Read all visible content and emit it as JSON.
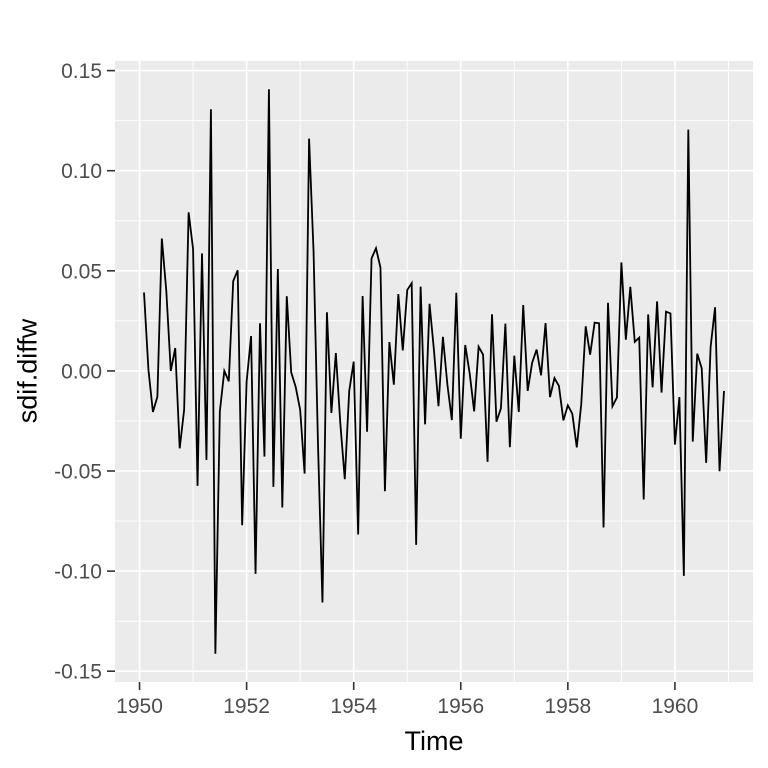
{
  "window": {
    "background": "#FFFFFF"
  },
  "axis_style": {
    "tick_label_color": "#4D4D4D",
    "tick_mark_color": "#333333",
    "title_color": "#000000",
    "tick_label_size": 21,
    "title_size": 27
  },
  "chart_data": {
    "type": "line",
    "title": "",
    "xlabel": "Time",
    "ylabel": "sdif.diffw",
    "legend_position": "none",
    "grid": true,
    "panel_background": "#EBEBEB",
    "grid_major_color": "#FFFFFF",
    "grid_minor_color": "#FFFFFF",
    "line_color": "#000000",
    "xlim": [
      1949.5417,
      1961.4583
    ],
    "ylim": [
      -0.1554,
      0.1548
    ],
    "x_major_ticks": [
      1950,
      1952,
      1954,
      1956,
      1958,
      1960
    ],
    "x_tick_labels": [
      "1950",
      "1952",
      "1954",
      "1956",
      "1958",
      "1960"
    ],
    "x_minor_ticks": [
      1951,
      1953,
      1955,
      1957,
      1959,
      1961
    ],
    "y_major_ticks": [
      0.15,
      0.1,
      0.05,
      0.0,
      -0.05,
      -0.1,
      -0.15
    ],
    "y_tick_labels": [
      "0.15",
      "0.10",
      "0.05",
      "0.00",
      "-0.05",
      "-0.10",
      "-0.15"
    ],
    "y_minor_ticks": [
      0.125,
      0.075,
      0.025,
      -0.025,
      -0.075,
      -0.125
    ],
    "series": [
      {
        "name": "sdif.diffw",
        "start_year": 1950,
        "start_month": 2,
        "frequency": 12,
        "values": [
          0.0392,
          0.0004,
          -0.0205,
          -0.0129,
          0.0661,
          0.0399,
          0.0,
          0.0114,
          -0.0387,
          -0.0194,
          0.0792,
          0.0608,
          -0.0574,
          0.0587,
          -0.0445,
          0.1307,
          -0.1413,
          -0.0203,
          0.0,
          -0.0052,
          0.0449,
          0.0502,
          -0.0771,
          -0.0054,
          0.0174,
          -0.1014,
          0.0238,
          -0.0428,
          0.1407,
          -0.0579,
          0.0509,
          -0.0682,
          0.0373,
          -0.0008,
          -0.008,
          -0.0194,
          -0.0513,
          0.116,
          0.0599,
          -0.0369,
          -0.1157,
          0.0293,
          -0.021,
          0.0089,
          -0.0261,
          -0.0541,
          -0.01,
          0.0046,
          -0.0817,
          0.0374,
          -0.0304,
          0.0562,
          0.0613,
          0.0516,
          -0.0601,
          0.0144,
          -0.0069,
          0.0384,
          0.0102,
          0.0404,
          0.0438,
          -0.0869,
          0.0421,
          -0.0267,
          0.0335,
          0.0101,
          -0.0176,
          0.017,
          -0.0068,
          -0.0246,
          0.039,
          -0.0339,
          0.0129,
          -0.0013,
          -0.0202,
          0.0121,
          0.0081,
          -0.0454,
          0.0283,
          -0.0254,
          -0.0187,
          0.0236,
          -0.0381,
          0.0076,
          -0.0205,
          0.0329,
          -0.01,
          0.0041,
          0.0107,
          -0.0022,
          0.0239,
          -0.0131,
          -0.0036,
          -0.0075,
          -0.0247,
          -0.0172,
          -0.0214,
          -0.0382,
          -0.0167,
          0.0223,
          0.0081,
          0.0241,
          0.0238,
          -0.0782,
          0.034,
          -0.0177,
          -0.0133,
          0.0542,
          0.0156,
          0.042,
          0.0145,
          0.0166,
          -0.0642,
          0.0282,
          -0.0082,
          0.0347,
          -0.0108,
          0.0296,
          0.0287,
          -0.0368,
          -0.0131,
          -0.1024,
          0.1205,
          -0.0353,
          0.0086,
          0.0014,
          -0.0459,
          0.012,
          0.0318,
          -0.0501,
          -0.01
        ]
      }
    ]
  }
}
